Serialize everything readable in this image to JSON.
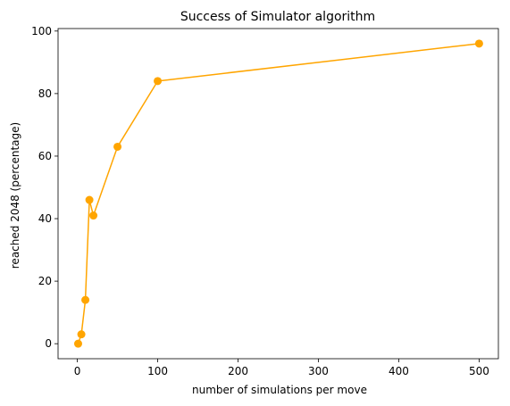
{
  "chart_data": {
    "type": "line",
    "title": "Success of Simulator algorithm",
    "xlabel": "number of simulations per move",
    "ylabel": "reached 2048 (percentage)",
    "xlim": [
      -24,
      524
    ],
    "ylim": [
      -4.8,
      100.8
    ],
    "xticks": [
      0,
      100,
      200,
      300,
      400,
      500
    ],
    "yticks": [
      0,
      20,
      40,
      60,
      80,
      100
    ],
    "grid": false,
    "series": [
      {
        "color": "#ffa500",
        "marker": "circle",
        "x": [
          1,
          5,
          10,
          15,
          20,
          50,
          100,
          500
        ],
        "y": [
          0,
          3,
          14,
          46,
          41,
          63,
          84,
          96
        ]
      }
    ]
  }
}
